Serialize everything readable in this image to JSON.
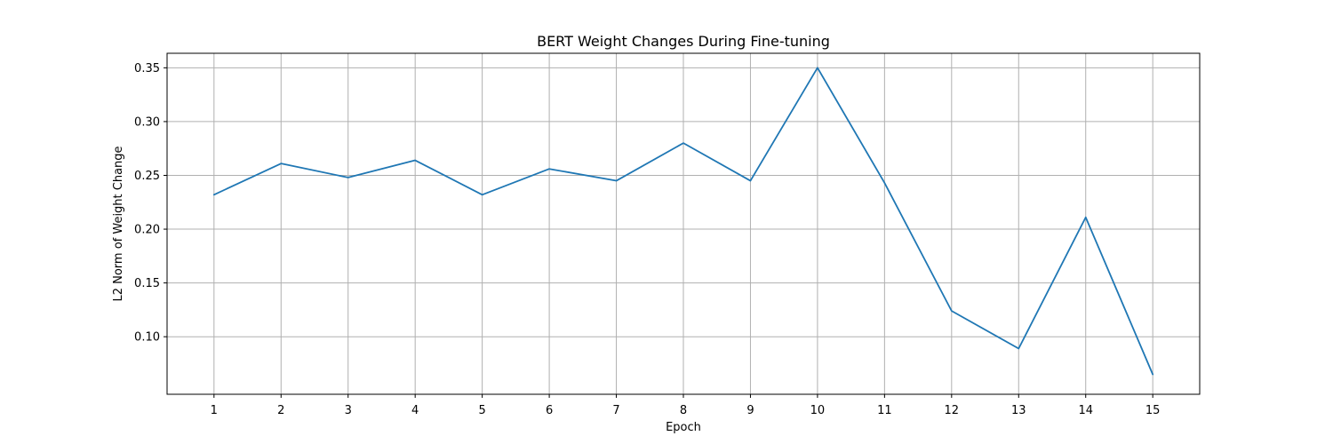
{
  "chart_data": {
    "type": "line",
    "title": "BERT Weight Changes During Fine-tuning",
    "xlabel": "Epoch",
    "ylabel": "L2 Norm of Weight Change",
    "x": [
      1,
      2,
      3,
      4,
      5,
      6,
      7,
      8,
      9,
      10,
      11,
      12,
      13,
      14,
      15
    ],
    "x_tick_labels": [
      "1",
      "2",
      "3",
      "4",
      "5",
      "6",
      "7",
      "8",
      "9",
      "10",
      "11",
      "12",
      "13",
      "14",
      "15"
    ],
    "y_ticks": [
      0.1,
      0.15,
      0.2,
      0.25,
      0.3,
      0.35
    ],
    "y_tick_labels": [
      "0.10",
      "0.15",
      "0.20",
      "0.25",
      "0.30",
      "0.35"
    ],
    "xlim": [
      0.3,
      15.7
    ],
    "ylim": [
      0.0465,
      0.3635
    ],
    "grid": true,
    "series": [
      {
        "color": "#1f77b4",
        "values": [
          0.232,
          0.261,
          0.248,
          0.264,
          0.232,
          0.256,
          0.245,
          0.28,
          0.245,
          0.35,
          0.243,
          0.124,
          0.089,
          0.211,
          0.065
        ]
      }
    ]
  }
}
